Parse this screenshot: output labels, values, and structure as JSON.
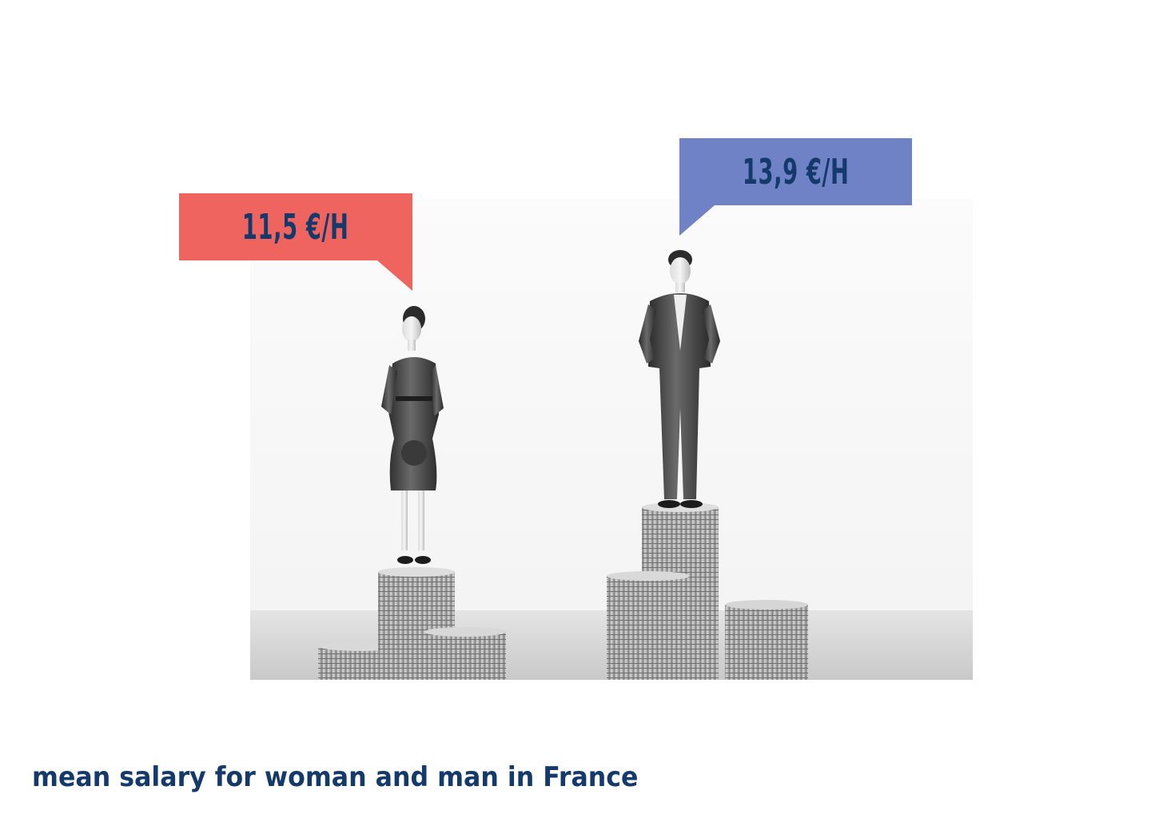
{
  "woman_label": "11,5 €/H",
  "man_label": "13,9 €/H",
  "caption": "mean salary for woman and man in France",
  "colors": {
    "woman_bubble": "#f0645f",
    "man_bubble": "#6f82c5",
    "text": "#143a6b"
  },
  "photo": {
    "description_icon": "figurines-on-coin-stacks"
  }
}
